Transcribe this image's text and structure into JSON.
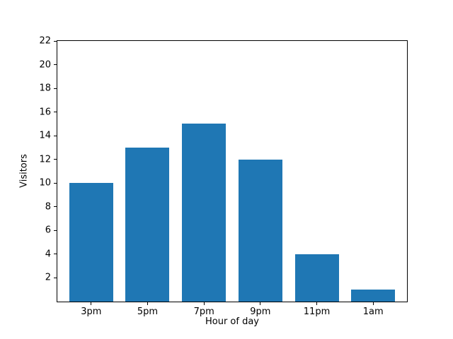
{
  "figure": {
    "background": "#ffffff",
    "frame_color": "#000000",
    "text_color": "#000000"
  },
  "chart_data": {
    "type": "bar",
    "categories": [
      "3pm",
      "5pm",
      "7pm",
      "9pm",
      "11pm",
      "1am"
    ],
    "values": [
      10,
      13,
      15,
      12,
      4,
      1
    ],
    "xlabel": "Hour of day",
    "ylabel": "Visitors",
    "ylim": [
      0,
      22
    ],
    "yticks": [
      2,
      4,
      6,
      8,
      10,
      12,
      14,
      16,
      18,
      20,
      22
    ],
    "bar_color": "#1f77b4",
    "grid": false,
    "legend": false,
    "title": ""
  }
}
